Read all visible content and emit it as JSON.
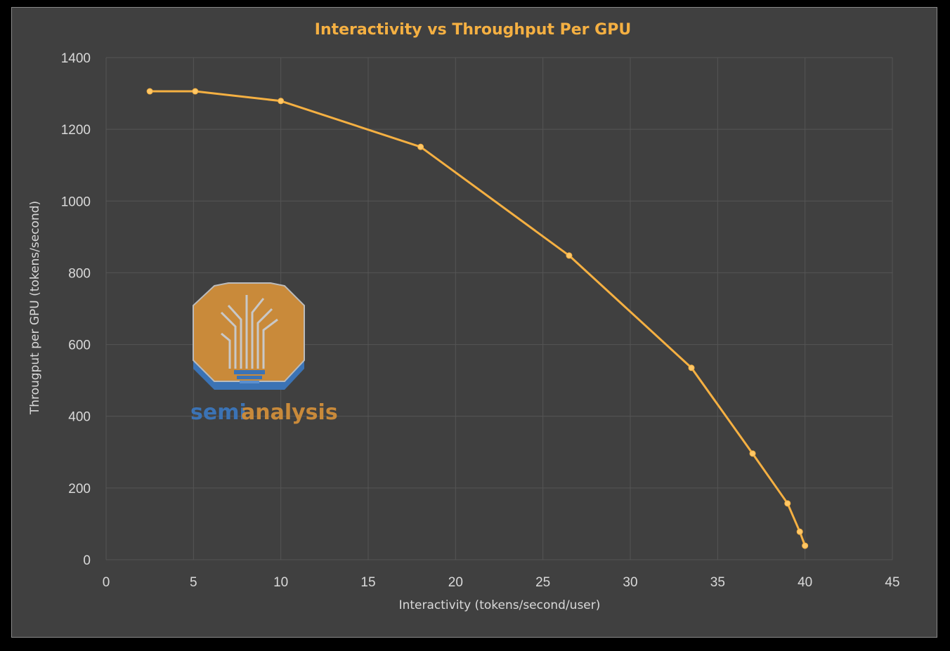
{
  "chart_data": {
    "type": "line",
    "title": "Interactivity vs Throughput Per GPU",
    "xlabel": "Interactivity (tokens/second/user)",
    "ylabel": "Througput per GPU (tokens/second)",
    "xlim": [
      0,
      45
    ],
    "ylim": [
      0,
      1400
    ],
    "xticks": [
      0,
      5,
      10,
      15,
      20,
      25,
      30,
      35,
      40,
      45
    ],
    "yticks": [
      0,
      200,
      400,
      600,
      800,
      1000,
      1200,
      1400
    ],
    "grid": true,
    "legend": "none",
    "series": [
      {
        "color": "#f5b042",
        "x": [
          2.5,
          5.1,
          10,
          18,
          26.5,
          33.5,
          37,
          39,
          39.7,
          40
        ],
        "y": [
          1306,
          1306,
          1279,
          1151,
          848,
          535,
          296,
          157,
          78,
          39
        ]
      }
    ]
  },
  "watermark": {
    "text_part1": "semi",
    "text_part2": "analysis",
    "colors": [
      "#3b73b5",
      "#c98a3a"
    ]
  },
  "colors": {
    "background": "#404040",
    "grid": "#555555",
    "line": "#f5b042"
  }
}
